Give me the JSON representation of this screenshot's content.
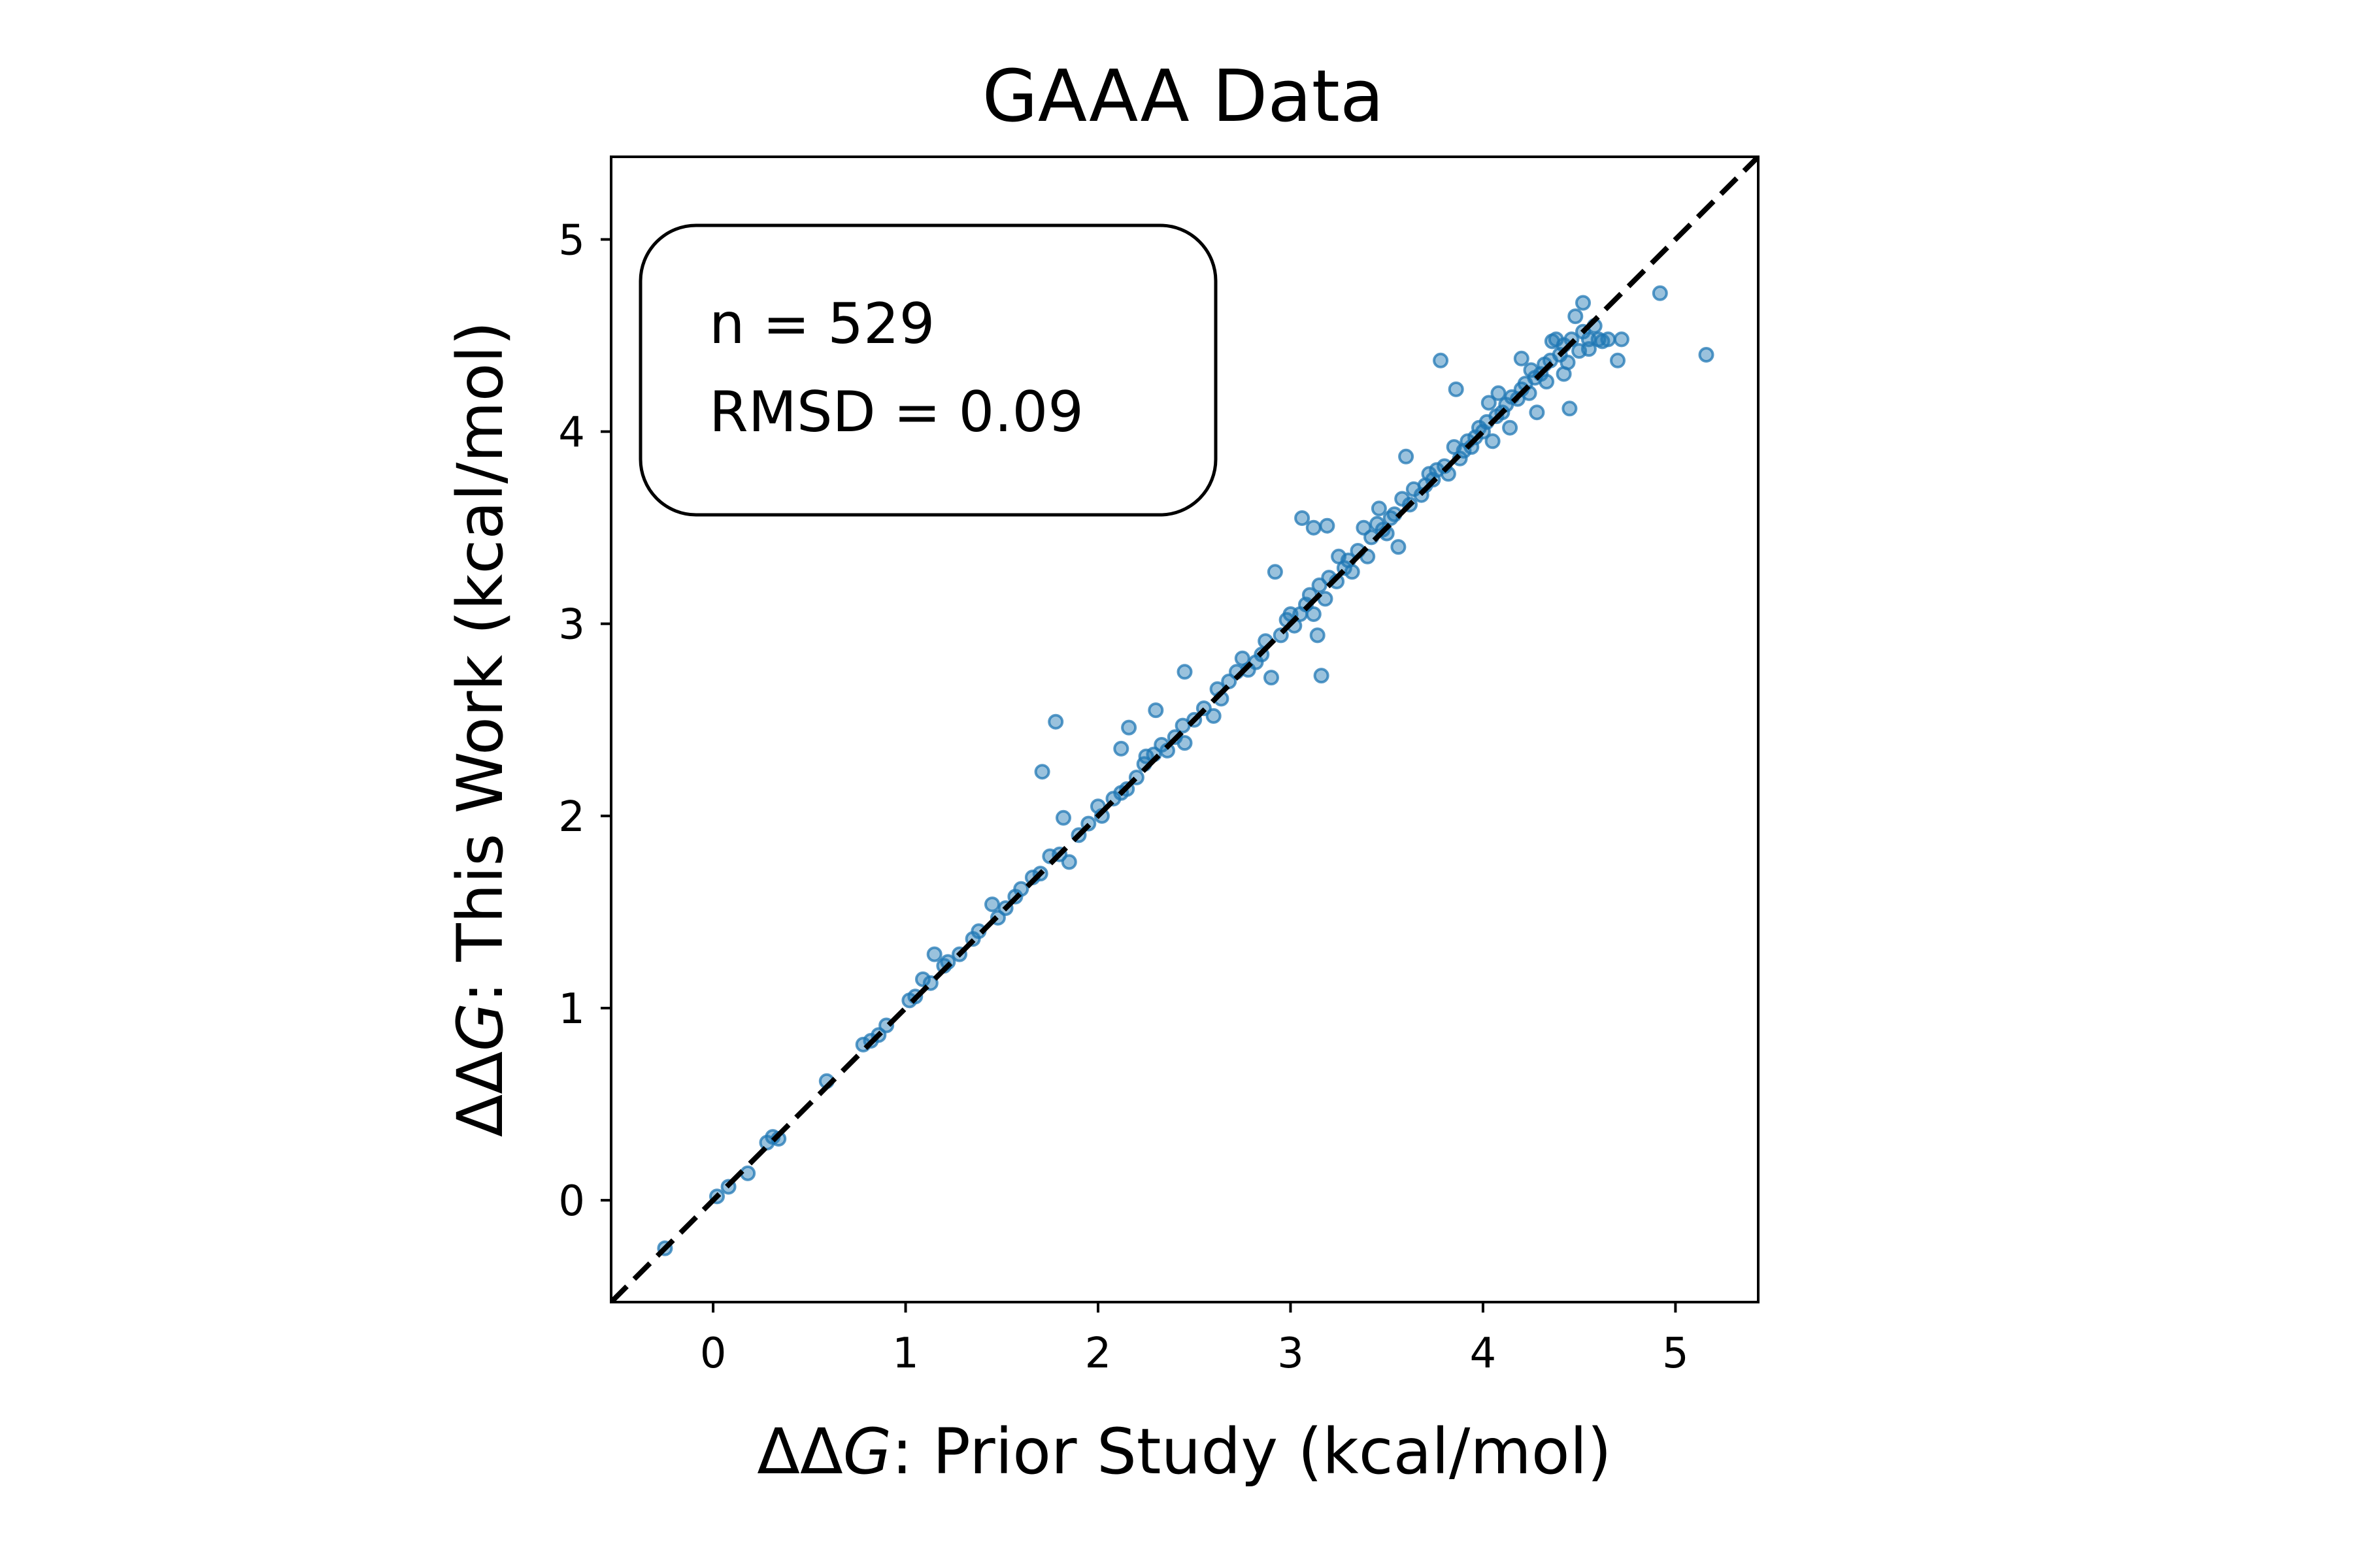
{
  "chart_data": {
    "type": "scatter",
    "title": "GAAA Data",
    "xlabel": {
      "prefix": "ΔΔ",
      "var": "G",
      "suffix": ": Prior Study (kcal/mol)"
    },
    "ylabel": {
      "prefix": "ΔΔ",
      "var": "G",
      "suffix": ": This Work (kcal/mol)"
    },
    "xlim": [
      -0.53,
      5.43
    ],
    "ylim": [
      -0.53,
      5.43
    ],
    "xticks": [
      0,
      1,
      2,
      3,
      4,
      5
    ],
    "yticks": [
      0,
      1,
      2,
      3,
      4,
      5
    ],
    "grid": false,
    "reference_line": {
      "style": "dashed",
      "slope": 1,
      "intercept": 0,
      "color": "#000000"
    },
    "marker_color": "#1f77b4",
    "annotation": {
      "position": "top-left",
      "lines": [
        "n = 529",
        "RMSD = 0.09"
      ]
    },
    "series": [
      {
        "points": [
          [
            -0.25,
            -0.25
          ],
          [
            0.02,
            0.02
          ],
          [
            0.08,
            0.07
          ],
          [
            0.18,
            0.14
          ],
          [
            0.28,
            0.3
          ],
          [
            0.31,
            0.33
          ],
          [
            0.34,
            0.32
          ],
          [
            0.59,
            0.62
          ],
          [
            0.78,
            0.81
          ],
          [
            0.82,
            0.83
          ],
          [
            0.86,
            0.86
          ],
          [
            0.9,
            0.91
          ],
          [
            1.02,
            1.04
          ],
          [
            1.05,
            1.06
          ],
          [
            1.09,
            1.15
          ],
          [
            1.13,
            1.13
          ],
          [
            1.15,
            1.28
          ],
          [
            1.2,
            1.22
          ],
          [
            1.22,
            1.24
          ],
          [
            1.28,
            1.28
          ],
          [
            1.35,
            1.36
          ],
          [
            1.38,
            1.4
          ],
          [
            1.45,
            1.54
          ],
          [
            1.48,
            1.47
          ],
          [
            1.52,
            1.52
          ],
          [
            1.57,
            1.58
          ],
          [
            1.6,
            1.62
          ],
          [
            1.66,
            1.68
          ],
          [
            1.7,
            1.7
          ],
          [
            1.71,
            2.23
          ],
          [
            1.75,
            1.79
          ],
          [
            1.78,
            2.49
          ],
          [
            1.8,
            1.8
          ],
          [
            1.82,
            1.99
          ],
          [
            1.85,
            1.76
          ],
          [
            1.9,
            1.9
          ],
          [
            1.95,
            1.96
          ],
          [
            2.0,
            2.05
          ],
          [
            2.02,
            2.0
          ],
          [
            2.08,
            2.09
          ],
          [
            2.12,
            2.12
          ],
          [
            2.12,
            2.35
          ],
          [
            2.15,
            2.14
          ],
          [
            2.16,
            2.46
          ],
          [
            2.2,
            2.2
          ],
          [
            2.24,
            2.27
          ],
          [
            2.25,
            2.31
          ],
          [
            2.29,
            2.32
          ],
          [
            2.3,
            2.55
          ],
          [
            2.33,
            2.37
          ],
          [
            2.36,
            2.34
          ],
          [
            2.4,
            2.41
          ],
          [
            2.44,
            2.47
          ],
          [
            2.45,
            2.38
          ],
          [
            2.45,
            2.75
          ],
          [
            2.5,
            2.5
          ],
          [
            2.55,
            2.56
          ],
          [
            2.6,
            2.52
          ],
          [
            2.62,
            2.66
          ],
          [
            2.64,
            2.61
          ],
          [
            2.68,
            2.7
          ],
          [
            2.72,
            2.75
          ],
          [
            2.75,
            2.82
          ],
          [
            2.78,
            2.76
          ],
          [
            2.82,
            2.8
          ],
          [
            2.85,
            2.84
          ],
          [
            2.87,
            2.91
          ],
          [
            2.9,
            2.72
          ],
          [
            2.92,
            3.27
          ],
          [
            2.95,
            2.94
          ],
          [
            2.98,
            3.02
          ],
          [
            3.0,
            3.05
          ],
          [
            3.02,
            2.99
          ],
          [
            3.05,
            3.05
          ],
          [
            3.06,
            3.55
          ],
          [
            3.08,
            3.1
          ],
          [
            3.1,
            3.15
          ],
          [
            3.12,
            3.05
          ],
          [
            3.12,
            3.5
          ],
          [
            3.14,
            2.94
          ],
          [
            3.15,
            3.2
          ],
          [
            3.16,
            2.73
          ],
          [
            3.18,
            3.13
          ],
          [
            3.19,
            3.51
          ],
          [
            3.2,
            3.24
          ],
          [
            3.24,
            3.22
          ],
          [
            3.25,
            3.35
          ],
          [
            3.28,
            3.29
          ],
          [
            3.3,
            3.33
          ],
          [
            3.32,
            3.27
          ],
          [
            3.35,
            3.38
          ],
          [
            3.38,
            3.5
          ],
          [
            3.4,
            3.35
          ],
          [
            3.42,
            3.45
          ],
          [
            3.45,
            3.52
          ],
          [
            3.46,
            3.6
          ],
          [
            3.48,
            3.49
          ],
          [
            3.5,
            3.47
          ],
          [
            3.52,
            3.55
          ],
          [
            3.54,
            3.57
          ],
          [
            3.56,
            3.4
          ],
          [
            3.58,
            3.65
          ],
          [
            3.6,
            3.87
          ],
          [
            3.62,
            3.62
          ],
          [
            3.64,
            3.7
          ],
          [
            3.68,
            3.67
          ],
          [
            3.7,
            3.72
          ],
          [
            3.72,
            3.78
          ],
          [
            3.74,
            3.75
          ],
          [
            3.76,
            3.8
          ],
          [
            3.78,
            4.37
          ],
          [
            3.8,
            3.82
          ],
          [
            3.82,
            3.78
          ],
          [
            3.85,
            3.92
          ],
          [
            3.86,
            4.22
          ],
          [
            3.88,
            3.86
          ],
          [
            3.9,
            3.9
          ],
          [
            3.92,
            3.95
          ],
          [
            3.94,
            3.92
          ],
          [
            3.96,
            3.97
          ],
          [
            3.98,
            4.02
          ],
          [
            4.0,
            4.0
          ],
          [
            4.02,
            4.05
          ],
          [
            4.03,
            4.15
          ],
          [
            4.05,
            3.95
          ],
          [
            4.07,
            4.08
          ],
          [
            4.08,
            4.2
          ],
          [
            4.1,
            4.1
          ],
          [
            4.12,
            4.14
          ],
          [
            4.14,
            4.02
          ],
          [
            4.15,
            4.18
          ],
          [
            4.18,
            4.17
          ],
          [
            4.2,
            4.22
          ],
          [
            4.2,
            4.38
          ],
          [
            4.22,
            4.25
          ],
          [
            4.24,
            4.2
          ],
          [
            4.25,
            4.32
          ],
          [
            4.27,
            4.28
          ],
          [
            4.28,
            4.1
          ],
          [
            4.3,
            4.3
          ],
          [
            4.32,
            4.35
          ],
          [
            4.33,
            4.26
          ],
          [
            4.35,
            4.37
          ],
          [
            4.36,
            4.47
          ],
          [
            4.38,
            4.48
          ],
          [
            4.4,
            4.4
          ],
          [
            4.42,
            4.45
          ],
          [
            4.42,
            4.3
          ],
          [
            4.44,
            4.36
          ],
          [
            4.45,
            4.12
          ],
          [
            4.46,
            4.48
          ],
          [
            4.48,
            4.6
          ],
          [
            4.5,
            4.42
          ],
          [
            4.52,
            4.67
          ],
          [
            4.52,
            4.52
          ],
          [
            4.55,
            4.48
          ],
          [
            4.55,
            4.43
          ],
          [
            4.58,
            4.55
          ],
          [
            4.6,
            4.48
          ],
          [
            4.62,
            4.47
          ],
          [
            4.65,
            4.48
          ],
          [
            4.7,
            4.37
          ],
          [
            4.72,
            4.48
          ],
          [
            4.92,
            4.72
          ],
          [
            5.16,
            4.4
          ]
        ]
      }
    ]
  }
}
